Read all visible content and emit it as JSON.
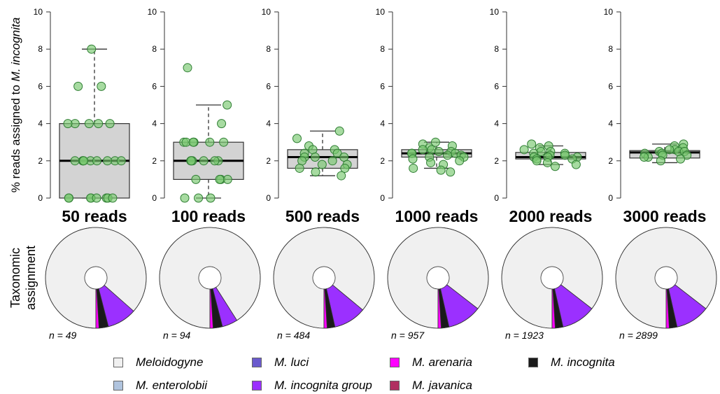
{
  "y_axis_label_prefix": "% reads assigned to ",
  "y_axis_label_species": "M. incognita",
  "donut_row_label": [
    "Taxonomic",
    "assignment"
  ],
  "y_ticks": [
    "0",
    "2",
    "4",
    "6",
    "8",
    "10"
  ],
  "legend": [
    {
      "label": "Meloidogyne",
      "color": "#f0f0f0"
    },
    {
      "label": "M. luci",
      "color": "#6a5acd"
    },
    {
      "label": "M. arenaria",
      "color": "#ff00ff"
    },
    {
      "label": "M. incognita",
      "color": "#1a1a1a"
    },
    {
      "label": "M. enterolobii",
      "color": "#b0c4de"
    },
    {
      "label": "M. incognita group",
      "color": "#9b30ff"
    },
    {
      "label": "M. javanica",
      "color": "#b03060"
    }
  ],
  "chart_data": [
    {
      "type": "box",
      "title": "50 reads",
      "ylim": [
        0,
        10
      ],
      "box": {
        "min": 0,
        "q1": 0,
        "median": 2,
        "q3": 4,
        "max": 8
      },
      "points": [
        8,
        6,
        6,
        4,
        4,
        4,
        4,
        4,
        2,
        2,
        2,
        2,
        2,
        2,
        2,
        2,
        2,
        0,
        0,
        0,
        0,
        0,
        0,
        0,
        0
      ],
      "donut": {
        "n_label": "n = 49",
        "slices": [
          {
            "name": "Meloidogyne",
            "value": 0.865
          },
          {
            "name": "M. incognita group",
            "value": 0.095
          },
          {
            "name": "M. incognita",
            "value": 0.03
          },
          {
            "name": "M. arenaria",
            "value": 0.01
          }
        ]
      }
    },
    {
      "type": "box",
      "title": "100 reads",
      "ylim": [
        0,
        10
      ],
      "box": {
        "min": 0,
        "q1": 1,
        "median": 2,
        "q3": 3,
        "max": 5
      },
      "points": [
        7,
        5,
        4,
        3,
        3,
        3,
        3,
        3,
        3,
        2,
        2,
        2,
        2,
        2,
        2,
        1,
        1,
        1,
        1,
        0,
        0,
        0
      ],
      "donut": {
        "n_label": "n = 94",
        "slices": [
          {
            "name": "Meloidogyne",
            "value": 0.91
          },
          {
            "name": "M. incognita group",
            "value": 0.05
          },
          {
            "name": "M. incognita",
            "value": 0.03
          },
          {
            "name": "M. arenaria",
            "value": 0.01
          }
        ]
      }
    },
    {
      "type": "box",
      "title": "500 reads",
      "ylim": [
        0,
        10
      ],
      "box": {
        "min": 1.2,
        "q1": 1.6,
        "median": 2.2,
        "q3": 2.6,
        "max": 3.6
      },
      "points": [
        3.6,
        3.2,
        2.8,
        2.6,
        2.6,
        2.4,
        2.4,
        2.2,
        2.2,
        2.2,
        2.0,
        2.0,
        1.8,
        1.8,
        1.6,
        1.6,
        1.4,
        1.2
      ],
      "donut": {
        "n_label": "n = 484",
        "slices": [
          {
            "name": "Meloidogyne",
            "value": 0.86
          },
          {
            "name": "M. incognita group",
            "value": 0.105
          },
          {
            "name": "M. incognita",
            "value": 0.025
          },
          {
            "name": "M. arenaria",
            "value": 0.01
          }
        ]
      }
    },
    {
      "type": "box",
      "title": "1000 reads",
      "ylim": [
        0,
        10
      ],
      "box": {
        "min": 1.6,
        "q1": 2.2,
        "median": 2.4,
        "q3": 2.6,
        "max": 3.0
      },
      "points": [
        3.0,
        2.9,
        2.8,
        2.7,
        2.6,
        2.6,
        2.5,
        2.5,
        2.4,
        2.4,
        2.4,
        2.3,
        2.3,
        2.2,
        2.2,
        2.1,
        2.0,
        1.9,
        1.8,
        1.6,
        1.5,
        1.4
      ],
      "donut": {
        "n_label": "n = 957",
        "slices": [
          {
            "name": "Meloidogyne",
            "value": 0.855
          },
          {
            "name": "M. incognita group",
            "value": 0.11
          },
          {
            "name": "M. incognita",
            "value": 0.025
          },
          {
            "name": "M. arenaria",
            "value": 0.01
          }
        ]
      }
    },
    {
      "type": "box",
      "title": "2000 reads",
      "ylim": [
        0,
        10
      ],
      "box": {
        "min": 1.8,
        "q1": 2.1,
        "median": 2.2,
        "q3": 2.45,
        "max": 2.8
      },
      "points": [
        2.9,
        2.8,
        2.7,
        2.6,
        2.5,
        2.5,
        2.4,
        2.4,
        2.3,
        2.3,
        2.2,
        2.2,
        2.2,
        2.1,
        2.1,
        2.0,
        1.9,
        1.8,
        1.7
      ],
      "donut": {
        "n_label": "n = 1923",
        "slices": [
          {
            "name": "Meloidogyne",
            "value": 0.855
          },
          {
            "name": "M. incognita group",
            "value": 0.11
          },
          {
            "name": "M. incognita",
            "value": 0.025
          },
          {
            "name": "M. arenaria",
            "value": 0.01
          }
        ]
      }
    },
    {
      "type": "box",
      "title": "3000 reads",
      "ylim": [
        0,
        10
      ],
      "box": {
        "min": 1.9,
        "q1": 2.15,
        "median": 2.45,
        "q3": 2.55,
        "max": 2.9
      },
      "points": [
        2.9,
        2.8,
        2.7,
        2.6,
        2.6,
        2.5,
        2.5,
        2.5,
        2.4,
        2.4,
        2.3,
        2.3,
        2.2,
        2.2,
        2.1,
        2.0
      ],
      "donut": {
        "n_label": "n = 2899",
        "slices": [
          {
            "name": "Meloidogyne",
            "value": 0.855
          },
          {
            "name": "M. incognita group",
            "value": 0.11
          },
          {
            "name": "M. incognita",
            "value": 0.025
          },
          {
            "name": "M. arenaria",
            "value": 0.01
          }
        ]
      }
    }
  ]
}
